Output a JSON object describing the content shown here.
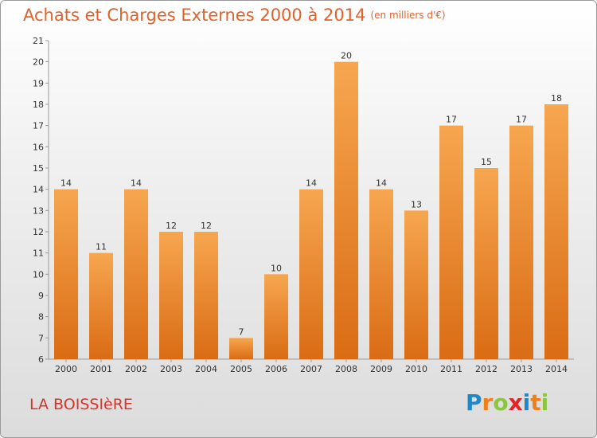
{
  "title": {
    "main": "Achats et Charges Externes 2000 à 2014",
    "unit": "(en milliers d'€)"
  },
  "commune": "LA BOISSIèRE",
  "logo": {
    "text": "Proxiti",
    "letters": [
      {
        "ch": "P",
        "color": "#1e88c8"
      },
      {
        "ch": "r",
        "color": "#f07f1a"
      },
      {
        "ch": "o",
        "color": "#8cc63f"
      },
      {
        "ch": "x",
        "color": "#e2232a"
      },
      {
        "ch": "i",
        "color": "#1e88c8"
      },
      {
        "ch": "t",
        "color": "#f07f1a"
      },
      {
        "ch": "i",
        "color": "#8cc63f"
      }
    ]
  },
  "colors": {
    "bar_top": "#f7a650",
    "bar_bottom": "#d96c14",
    "title": "#e0622a",
    "commune": "#d8342a"
  },
  "chart_data": {
    "type": "bar",
    "categories": [
      "2000",
      "2001",
      "2002",
      "2003",
      "2004",
      "2005",
      "2006",
      "2007",
      "2008",
      "2009",
      "2010",
      "2011",
      "2012",
      "2013",
      "2014"
    ],
    "values": [
      14,
      11,
      14,
      12,
      12,
      7,
      10,
      14,
      20,
      14,
      13,
      17,
      15,
      17,
      18
    ],
    "ylim": [
      6,
      21
    ],
    "yticks": [
      6,
      7,
      8,
      9,
      10,
      11,
      12,
      13,
      14,
      15,
      16,
      17,
      18,
      19,
      20,
      21
    ],
    "grid": false,
    "data_labels": true
  }
}
